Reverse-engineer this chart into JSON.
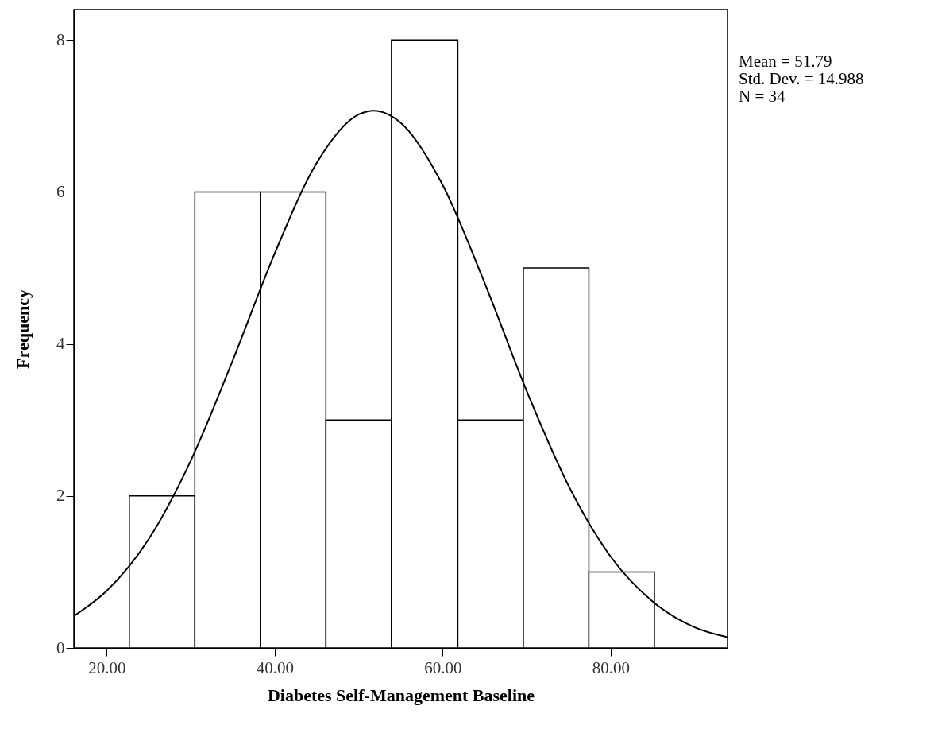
{
  "chart_data": {
    "type": "histogram",
    "xlabel": "Diabetes Self-Management Baseline",
    "ylabel": "Frequency",
    "series": [
      {
        "color": "#ffffff",
        "bins": [
          22.7,
          30.5,
          38.3,
          46.1,
          53.9,
          61.8,
          69.6,
          77.4,
          85.2
        ],
        "values": [
          2,
          6,
          6,
          3,
          8,
          3,
          5,
          1
        ]
      },
      {
        "type": "line",
        "color": "#000000",
        "x": [
          16.1,
          20,
          25,
          30,
          35,
          40,
          45,
          50,
          51.8,
          55,
          60,
          65,
          70,
          75,
          80,
          85,
          90,
          93.9
        ],
        "values": [
          0.42,
          0.75,
          1.43,
          2.46,
          3.78,
          5.19,
          6.38,
          7.02,
          7.07,
          6.91,
          6.09,
          4.8,
          3.38,
          2.13,
          1.2,
          0.61,
          0.27,
          0.14
        ]
      }
    ],
    "xlim": [
      16.1,
      93.9
    ],
    "xticks": [
      {
        "value": 20,
        "label": "20.00"
      },
      {
        "value": 40,
        "label": "40.00"
      },
      {
        "value": 60,
        "label": "60.00"
      },
      {
        "value": 80,
        "label": "80.00"
      }
    ],
    "ylim": [
      0,
      8.4
    ],
    "yticks": [
      0,
      2,
      4,
      6,
      8
    ],
    "grid": false,
    "annotations": [
      "Mean = 51.79",
      "Std. Dev. = 14.988",
      "N = 34"
    ]
  }
}
